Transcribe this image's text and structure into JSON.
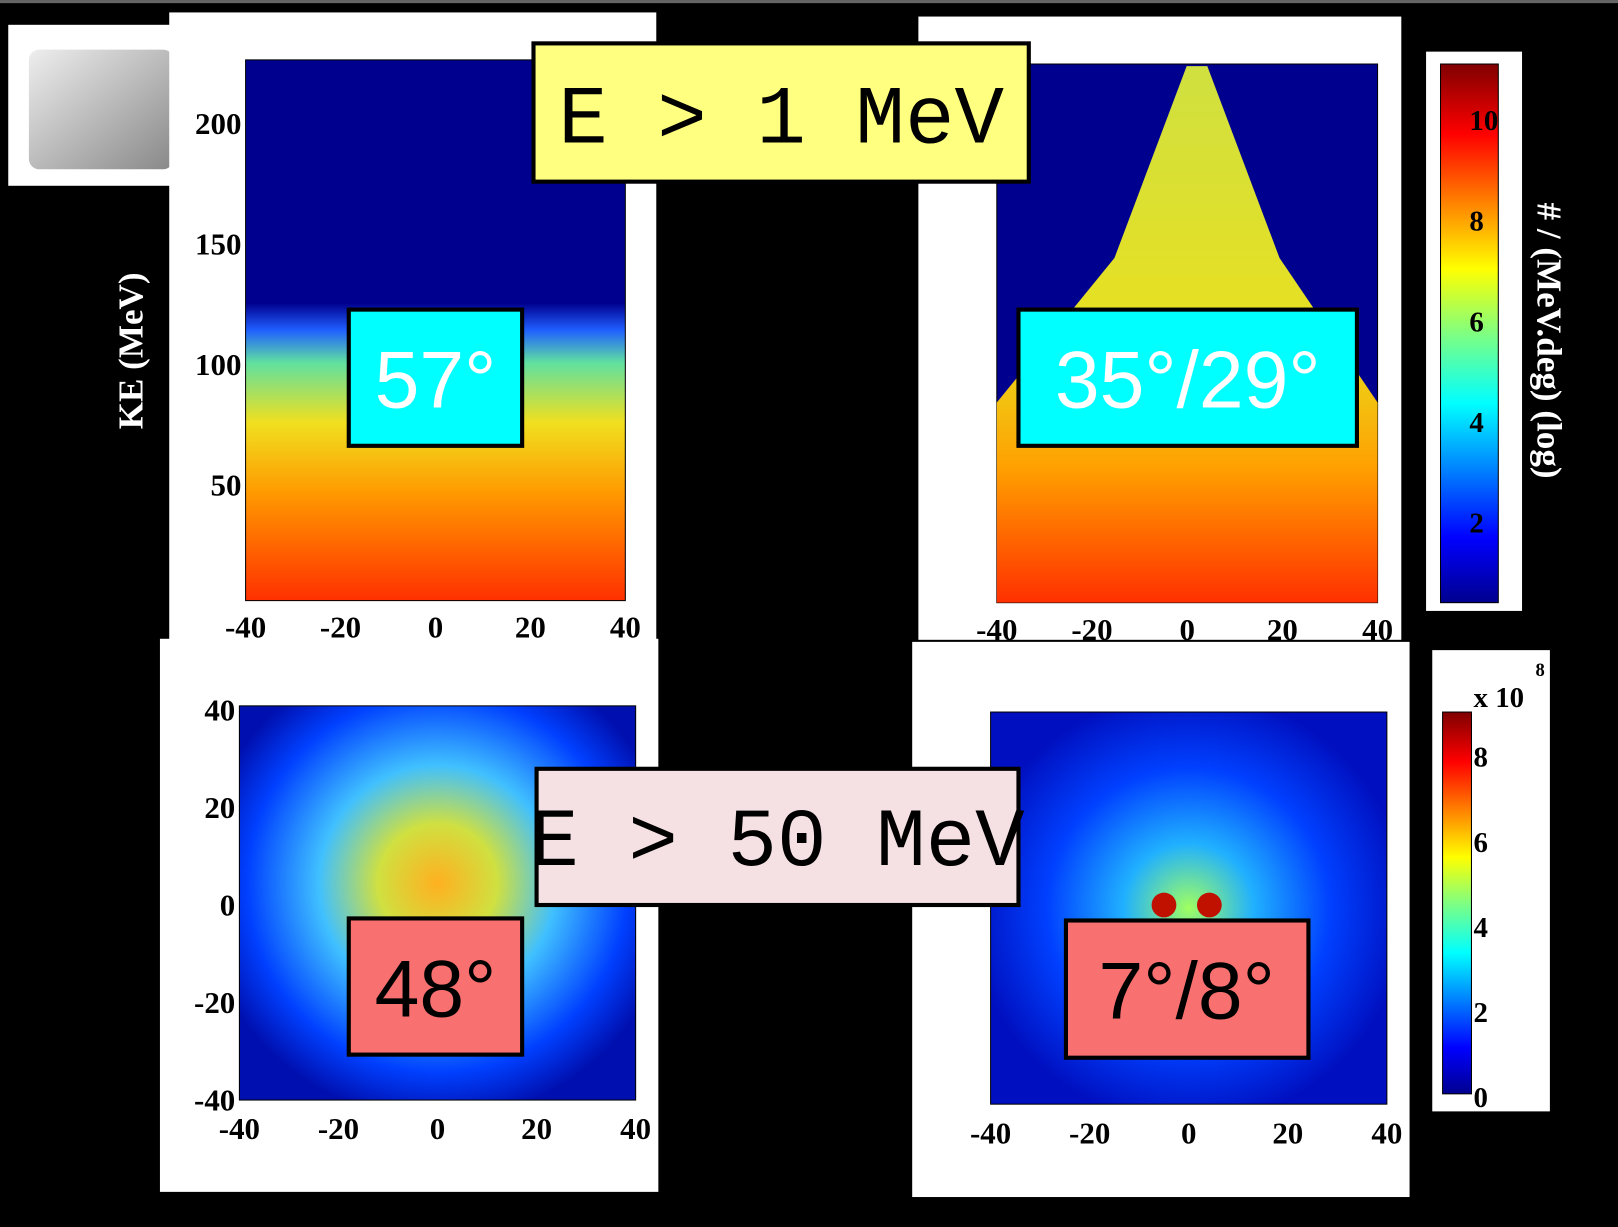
{
  "header": {
    "top_energy": "E > 1 MeV",
    "bottom_energy": "E > 50 MeV"
  },
  "panels": [
    {
      "angle": "57°",
      "y_label": "KE (MeV)",
      "yticks": [
        200,
        150,
        100,
        50
      ],
      "xticks": [
        -40,
        -20,
        0,
        20,
        40
      ]
    },
    {
      "angle": "35°/29°",
      "xticks": [
        -40,
        -20,
        0,
        20,
        40
      ]
    },
    {
      "angle": "48°",
      "yticks": [
        40,
        20,
        0,
        -20,
        -40
      ],
      "xticks": [
        -40,
        -20,
        0,
        20,
        40
      ]
    },
    {
      "angle": "7°/8°",
      "xticks": [
        -40,
        -20,
        0,
        20,
        40
      ]
    }
  ],
  "colorbars": [
    {
      "label": "# / (MeV.deg) (log)",
      "ticks": [
        10,
        8,
        6,
        4,
        2
      ]
    },
    {
      "multiplier": "x 10",
      "exponent": "8",
      "ticks": [
        8,
        6,
        4,
        2,
        0
      ]
    }
  ]
}
